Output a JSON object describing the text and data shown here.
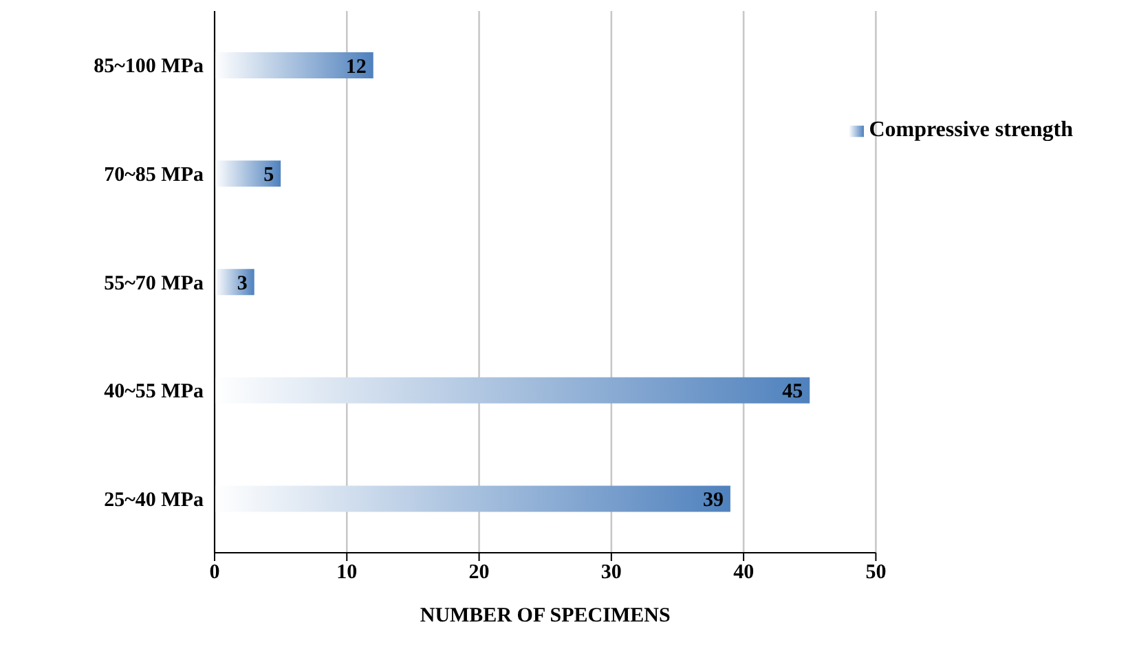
{
  "chart_data": {
    "type": "bar",
    "orientation": "horizontal",
    "xlabel": "NUMBER OF SPECIMENS",
    "categories": [
      "85~100 MPa",
      "70~85 MPa",
      "55~70 MPa",
      "40~55 MPa",
      "25~40 MPa"
    ],
    "series": [
      {
        "name": "Compressive strength",
        "color": "#4f81bd",
        "values": [
          12,
          5,
          3,
          45,
          39
        ]
      }
    ],
    "xlim": [
      0,
      50
    ],
    "xticks": [
      0,
      10,
      20,
      30,
      40,
      50
    ],
    "grid": "x",
    "legend": "top right",
    "data_labels": true
  }
}
